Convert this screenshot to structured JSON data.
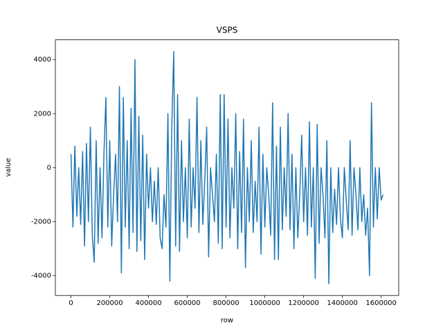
{
  "chart_data": {
    "type": "line",
    "title": "VSPS",
    "x_label": "row",
    "y_label": "value",
    "x": [
      0,
      10000,
      20000,
      30000,
      40000,
      50000,
      60000,
      70000,
      80000,
      90000,
      100000,
      110000,
      120000,
      130000,
      140000,
      150000,
      160000,
      170000,
      180000,
      190000,
      200000,
      210000,
      220000,
      230000,
      240000,
      250000,
      260000,
      270000,
      280000,
      290000,
      300000,
      310000,
      320000,
      330000,
      340000,
      350000,
      360000,
      370000,
      380000,
      390000,
      400000,
      410000,
      420000,
      430000,
      440000,
      450000,
      460000,
      470000,
      480000,
      490000,
      500000,
      510000,
      520000,
      530000,
      540000,
      550000,
      560000,
      570000,
      580000,
      590000,
      600000,
      610000,
      620000,
      630000,
      640000,
      650000,
      660000,
      670000,
      680000,
      690000,
      700000,
      710000,
      720000,
      730000,
      740000,
      750000,
      760000,
      770000,
      780000,
      790000,
      800000,
      810000,
      820000,
      830000,
      840000,
      850000,
      860000,
      870000,
      880000,
      890000,
      900000,
      910000,
      920000,
      930000,
      940000,
      950000,
      960000,
      970000,
      980000,
      990000,
      1000000,
      1010000,
      1020000,
      1030000,
      1040000,
      1050000,
      1060000,
      1070000,
      1080000,
      1090000,
      1100000,
      1110000,
      1120000,
      1130000,
      1140000,
      1150000,
      1160000,
      1170000,
      1180000,
      1190000,
      1200000,
      1210000,
      1220000,
      1230000,
      1240000,
      1250000,
      1260000,
      1270000,
      1280000,
      1290000,
      1300000,
      1310000,
      1320000,
      1330000,
      1340000,
      1350000,
      1360000,
      1370000,
      1380000,
      1390000,
      1400000,
      1410000,
      1420000,
      1430000,
      1440000,
      1450000,
      1460000,
      1470000,
      1480000,
      1490000,
      1500000,
      1510000,
      1520000,
      1530000,
      1540000,
      1550000,
      1560000,
      1570000,
      1580000,
      1590000,
      1600000,
      1610000
    ],
    "series": [
      {
        "name": "value",
        "color": "#1f77b4",
        "values": [
          500,
          -2200,
          800,
          -1800,
          0,
          -2100,
          600,
          -2900,
          900,
          -2000,
          1500,
          -2500,
          -3500,
          1000,
          -2800,
          0,
          -2600,
          500,
          2600,
          -2200,
          1000,
          -2900,
          -1000,
          500,
          -2000,
          3000,
          -3900,
          2600,
          -2200,
          1000,
          -3000,
          2200,
          -2400,
          4000,
          -3100,
          1900,
          -2700,
          1200,
          -3400,
          500,
          -1500,
          0,
          -2000,
          -500,
          -2100,
          0,
          -2600,
          -3000,
          -1000,
          -2200,
          2000,
          -4200,
          1500,
          4300,
          -2900,
          2700,
          -3100,
          1000,
          -2000,
          0,
          -2600,
          1800,
          -2200,
          0,
          -1500,
          2600,
          -2400,
          1000,
          -2100,
          -500,
          1500,
          -3300,
          0,
          -1000,
          -2000,
          500,
          -2800,
          2700,
          -3000,
          2700,
          -2200,
          1800,
          -2600,
          0,
          -1500,
          2000,
          -3000,
          600,
          -2400,
          1800,
          -3700,
          0,
          -2000,
          1000,
          -2400,
          -500,
          -2000,
          1500,
          -3200,
          500,
          -2200,
          0,
          -1000,
          -2500,
          2400,
          -3400,
          800,
          -3400,
          1500,
          -2300,
          0,
          -1800,
          2000,
          -2300,
          500,
          -3000,
          0,
          -2600,
          -1000,
          1200,
          -2000,
          0,
          -2500,
          1700,
          -2200,
          0,
          -4100,
          1600,
          -2800,
          0,
          -1000,
          -2600,
          1000,
          -4300,
          0,
          -2400,
          -800,
          -2100,
          0,
          -1900,
          -2600,
          0,
          -1200,
          -2300,
          1000,
          -2500,
          0,
          -1000,
          -2300,
          0,
          -2000,
          -1000,
          -2500,
          -1500,
          -4000,
          2400,
          -2200,
          0,
          -1900,
          0,
          -1200,
          -1000
        ]
      }
    ],
    "xlim": [
      -80500,
      1690500
    ],
    "ylim": [
      -4730,
      4730
    ],
    "xticks": [
      0,
      200000,
      400000,
      600000,
      800000,
      1000000,
      1200000,
      1400000,
      1600000
    ],
    "yticks": [
      -4000,
      -2000,
      0,
      2000,
      4000
    ]
  }
}
